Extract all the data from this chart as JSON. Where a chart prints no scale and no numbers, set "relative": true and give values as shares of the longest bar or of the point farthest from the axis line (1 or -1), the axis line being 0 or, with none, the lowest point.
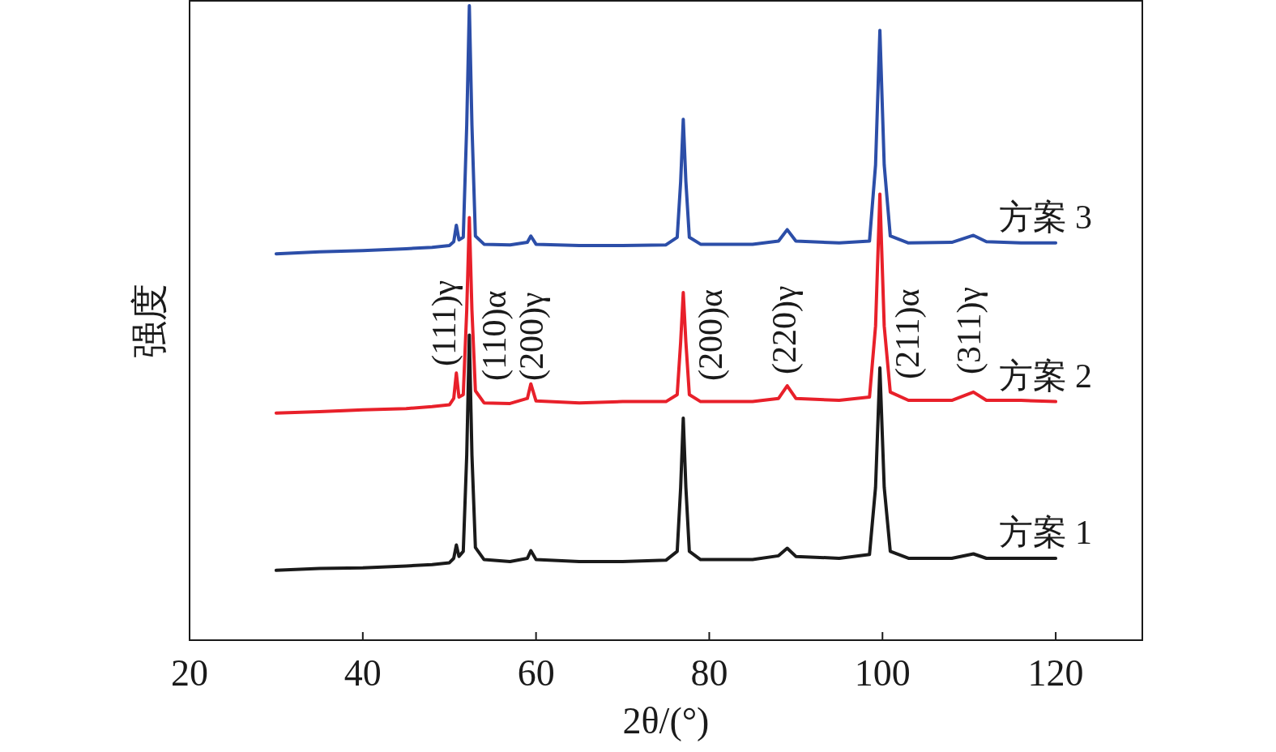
{
  "chart_data": {
    "type": "line",
    "relative": true,
    "xlabel": "2θ/(°)",
    "ylabel": "强度",
    "xlim": [
      20,
      130
    ],
    "xticks": [
      20,
      40,
      60,
      80,
      100,
      120
    ],
    "x": [
      30,
      35,
      40,
      45,
      48,
      50,
      50.5,
      50.8,
      51.1,
      51.6,
      52.0,
      52.3,
      52.6,
      53.0,
      54,
      57,
      59,
      59.4,
      60,
      65,
      70,
      75,
      76.3,
      76.7,
      77.0,
      77.3,
      77.7,
      79,
      85,
      88,
      89,
      90,
      95,
      98.5,
      99.2,
      99.7,
      100.2,
      100.9,
      103,
      108,
      110.5,
      112,
      116,
      120
    ],
    "series": [
      {
        "name": "方案 1",
        "color": "#1a1a1a",
        "values": [
          0.11,
          0.113,
          0.114,
          0.117,
          0.119,
          0.122,
          0.129,
          0.15,
          0.132,
          0.14,
          0.292,
          0.481,
          0.292,
          0.146,
          0.127,
          0.124,
          0.129,
          0.141,
          0.127,
          0.124,
          0.124,
          0.126,
          0.14,
          0.241,
          0.35,
          0.241,
          0.14,
          0.127,
          0.127,
          0.133,
          0.145,
          0.132,
          0.129,
          0.135,
          0.241,
          0.429,
          0.241,
          0.14,
          0.129,
          0.129,
          0.136,
          0.129,
          0.129,
          0.129
        ]
      },
      {
        "name": "方案 2",
        "color": "#e8202a",
        "values": [
          0.358,
          0.36,
          0.363,
          0.365,
          0.368,
          0.371,
          0.381,
          0.421,
          0.383,
          0.387,
          0.52,
          0.666,
          0.52,
          0.393,
          0.374,
          0.373,
          0.381,
          0.404,
          0.377,
          0.374,
          0.376,
          0.376,
          0.387,
          0.47,
          0.548,
          0.47,
          0.387,
          0.376,
          0.376,
          0.381,
          0.401,
          0.381,
          0.378,
          0.383,
          0.495,
          0.703,
          0.495,
          0.391,
          0.378,
          0.378,
          0.391,
          0.378,
          0.378,
          0.376
        ]
      },
      {
        "name": "方案 3",
        "color": "#2c4ea8",
        "values": [
          0.609,
          0.612,
          0.614,
          0.617,
          0.619,
          0.622,
          0.628,
          0.654,
          0.631,
          0.635,
          0.812,
          1.0,
          0.812,
          0.637,
          0.624,
          0.623,
          0.627,
          0.637,
          0.624,
          0.622,
          0.622,
          0.623,
          0.635,
          0.723,
          0.821,
          0.723,
          0.635,
          0.624,
          0.624,
          0.629,
          0.647,
          0.629,
          0.626,
          0.629,
          0.749,
          0.961,
          0.749,
          0.637,
          0.626,
          0.627,
          0.638,
          0.628,
          0.626,
          0.626
        ]
      }
    ],
    "annotations": [
      "(111)γ",
      "(110)α",
      "(200)γ",
      "(200)α",
      "(220)γ",
      "(211)α",
      "(311)γ"
    ]
  }
}
